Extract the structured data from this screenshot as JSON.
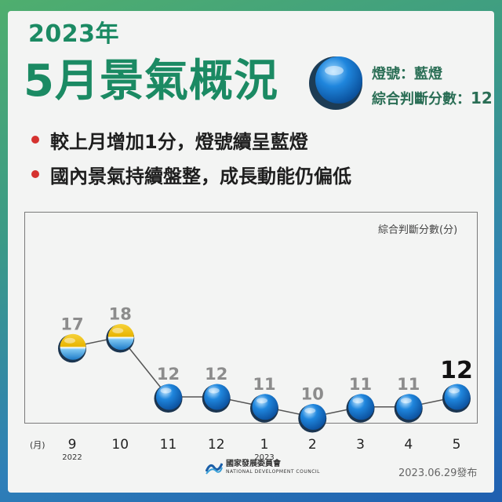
{
  "header": {
    "year_title": "2023年",
    "main_title": "5月景氣概況",
    "signal_label": "燈號：藍燈",
    "score_label": "綜合判斷分數：",
    "score_value": "12"
  },
  "bullets": [
    "較上月增加1分，燈號續呈藍燈",
    "國內景氣持續盤整，成長動能仍偏低"
  ],
  "colors": {
    "title_green": "#1b8a63",
    "blue_signal": "#1f86dd",
    "yellow_blue_signal": "#f2c318",
    "bullet_red": "#d5322f"
  },
  "chart_data": {
    "type": "line",
    "ylabel": "綜合判斷分數(分)",
    "xlabel": "(月)",
    "categories": [
      "9",
      "10",
      "11",
      "12",
      "1",
      "2",
      "3",
      "4",
      "5"
    ],
    "year_labels": [
      {
        "category": "9",
        "label": "2022"
      },
      {
        "category": "1",
        "label": "2023"
      }
    ],
    "values": [
      17,
      18,
      12,
      12,
      11,
      10,
      11,
      11,
      12
    ],
    "signals": [
      "yellow-blue",
      "yellow-blue",
      "blue",
      "blue",
      "blue",
      "blue",
      "blue",
      "blue",
      "blue"
    ],
    "ylim": [
      8,
      20
    ],
    "grid": false,
    "highlight_last": true
  },
  "footer": {
    "org_name": "國家發展委員會",
    "org_name_en": "NATIONAL DEVELOPMENT COUNCIL",
    "release": "2023.06.29發布"
  }
}
